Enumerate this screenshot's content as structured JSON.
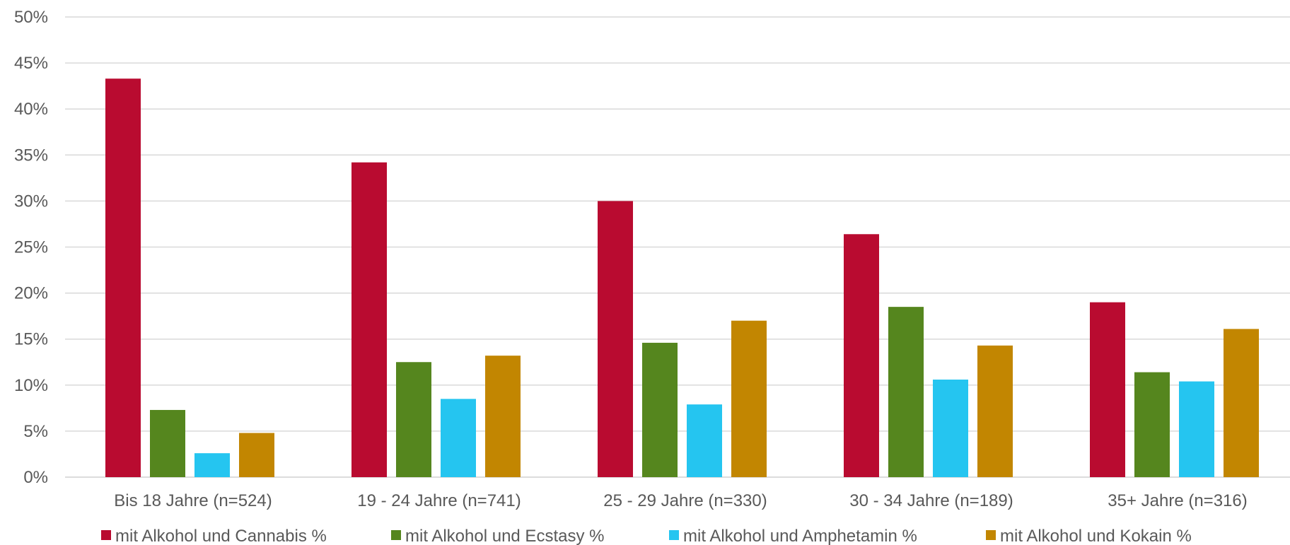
{
  "chart_data": {
    "type": "bar",
    "categories": [
      "Bis 18 Jahre (n=524)",
      "19 - 24 Jahre (n=741)",
      "25 - 29 Jahre (n=330)",
      "30 - 34 Jahre (n=189)",
      "35+ Jahre (n=316)"
    ],
    "series": [
      {
        "name": "mit Alkohol und Cannabis %",
        "color": "#b90b30",
        "values": [
          43.3,
          34.2,
          30.0,
          26.4,
          19.0
        ]
      },
      {
        "name": "mit Alkohol und Ecstasy %",
        "color": "#55861e",
        "values": [
          7.3,
          12.5,
          14.6,
          18.5,
          11.4
        ]
      },
      {
        "name": "mit Alkohol und Amphetamin %",
        "color": "#25c5f0",
        "values": [
          2.6,
          8.5,
          7.9,
          10.6,
          10.4
        ]
      },
      {
        "name": "mit Alkohol und Kokain %",
        "color": "#c28601",
        "values": [
          4.8,
          13.2,
          17.0,
          14.3,
          16.1
        ]
      }
    ],
    "yticks": [
      "0%",
      "5%",
      "10%",
      "15%",
      "20%",
      "25%",
      "30%",
      "35%",
      "40%",
      "45%",
      "50%"
    ],
    "ylim": [
      0,
      50
    ],
    "grid": true,
    "legend_position": "bottom",
    "title": "",
    "xlabel": "",
    "ylabel": ""
  }
}
